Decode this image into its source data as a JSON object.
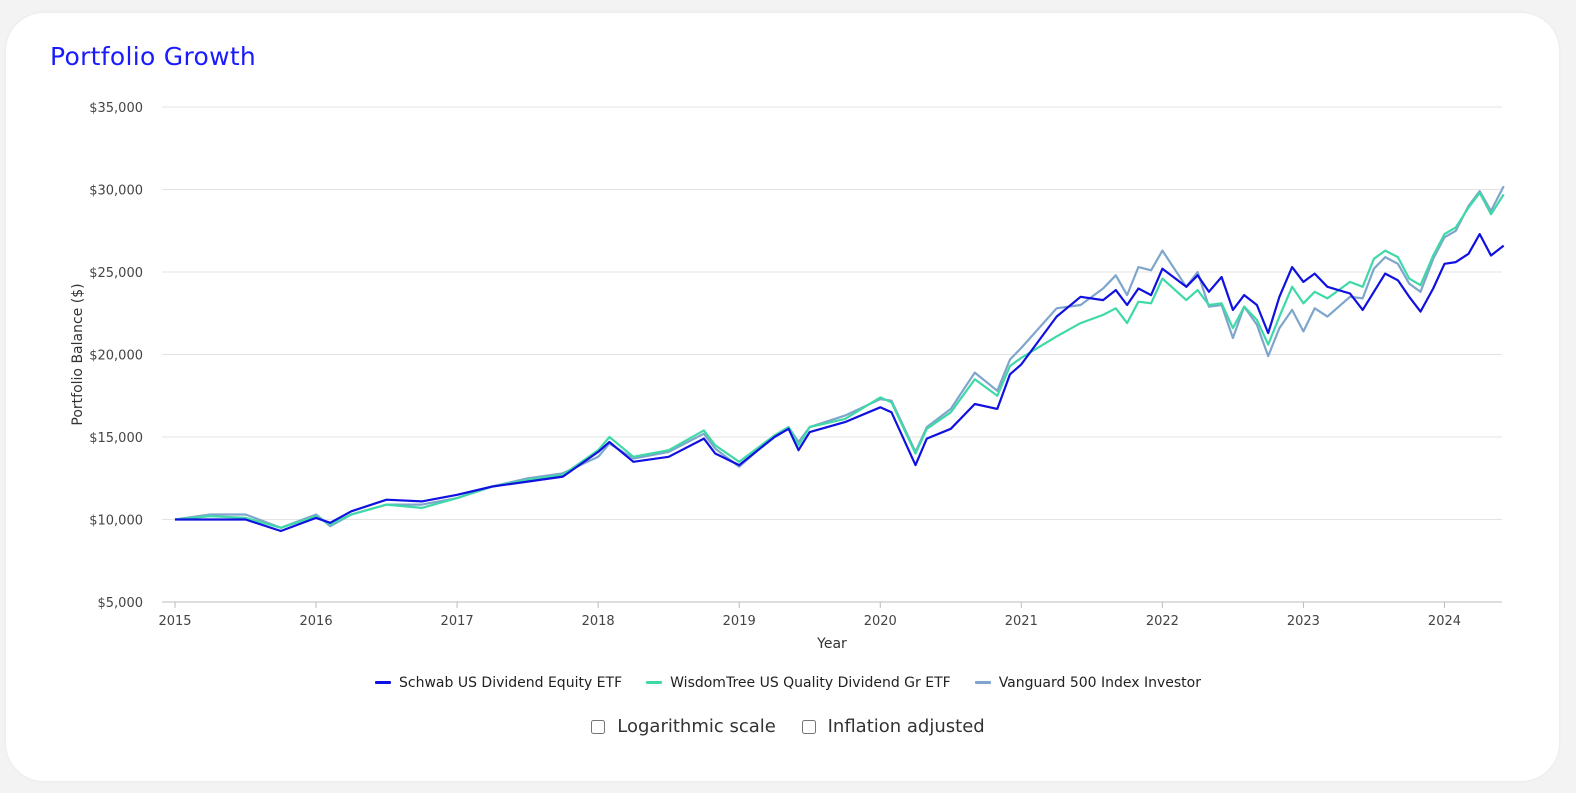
{
  "title": "Portfolio Growth",
  "colors": {
    "background": "#ffffff",
    "title": "#1a1aff",
    "grid": "#e3e3e3"
  },
  "options": {
    "log_label": "Logarithmic scale",
    "inflation_label": "Inflation adjusted",
    "log_checked": false,
    "inflation_checked": false
  },
  "chart_data": {
    "type": "line",
    "title": "",
    "xlabel": "Year",
    "ylabel": "Portfolio Balance ($)",
    "xlim": [
      2015.0,
      2024.5
    ],
    "ylim": [
      5000,
      35000
    ],
    "y_ticks": [
      5000,
      10000,
      15000,
      20000,
      25000,
      30000,
      35000
    ],
    "y_tick_labels": [
      "$5,000",
      "$10,000",
      "$15,000",
      "$20,000",
      "$25,000",
      "$30,000",
      "$35,000"
    ],
    "x_ticks": [
      2015,
      2016,
      2017,
      2018,
      2019,
      2020,
      2021,
      2022,
      2023,
      2024
    ],
    "x_tick_labels": [
      "2015",
      "2016",
      "2017",
      "2018",
      "2019",
      "2020",
      "2021",
      "2022",
      "2023",
      "2024"
    ],
    "grid": true,
    "legend_position": "bottom",
    "series": [
      {
        "name": "Schwab US Dividend Equity ETF",
        "color": "#1010e0",
        "points": [
          [
            2015.0,
            10000
          ],
          [
            2015.25,
            10000
          ],
          [
            2015.5,
            10000
          ],
          [
            2015.75,
            9300
          ],
          [
            2016.0,
            10100
          ],
          [
            2016.1,
            9800
          ],
          [
            2016.25,
            10500
          ],
          [
            2016.5,
            11200
          ],
          [
            2016.75,
            11100
          ],
          [
            2017.0,
            11500
          ],
          [
            2017.25,
            12000
          ],
          [
            2017.5,
            12300
          ],
          [
            2017.75,
            12600
          ],
          [
            2018.0,
            14100
          ],
          [
            2018.08,
            14700
          ],
          [
            2018.25,
            13500
          ],
          [
            2018.5,
            13800
          ],
          [
            2018.75,
            14900
          ],
          [
            2018.83,
            14000
          ],
          [
            2019.0,
            13300
          ],
          [
            2019.25,
            15000
          ],
          [
            2019.35,
            15500
          ],
          [
            2019.42,
            14200
          ],
          [
            2019.5,
            15300
          ],
          [
            2019.75,
            15900
          ],
          [
            2020.0,
            16800
          ],
          [
            2020.08,
            16500
          ],
          [
            2020.25,
            13300
          ],
          [
            2020.33,
            14900
          ],
          [
            2020.5,
            15500
          ],
          [
            2020.67,
            17000
          ],
          [
            2020.83,
            16700
          ],
          [
            2020.92,
            18800
          ],
          [
            2021.0,
            19400
          ],
          [
            2021.25,
            22300
          ],
          [
            2021.42,
            23500
          ],
          [
            2021.58,
            23300
          ],
          [
            2021.67,
            23900
          ],
          [
            2021.75,
            23000
          ],
          [
            2021.83,
            24000
          ],
          [
            2021.92,
            23600
          ],
          [
            2022.0,
            25200
          ],
          [
            2022.17,
            24100
          ],
          [
            2022.25,
            24800
          ],
          [
            2022.33,
            23800
          ],
          [
            2022.42,
            24700
          ],
          [
            2022.5,
            22700
          ],
          [
            2022.58,
            23600
          ],
          [
            2022.67,
            23000
          ],
          [
            2022.75,
            21300
          ],
          [
            2022.83,
            23500
          ],
          [
            2022.92,
            25300
          ],
          [
            2023.0,
            24400
          ],
          [
            2023.08,
            24900
          ],
          [
            2023.17,
            24100
          ],
          [
            2023.33,
            23700
          ],
          [
            2023.42,
            22700
          ],
          [
            2023.5,
            23800
          ],
          [
            2023.58,
            24900
          ],
          [
            2023.67,
            24500
          ],
          [
            2023.75,
            23500
          ],
          [
            2023.83,
            22600
          ],
          [
            2023.92,
            24000
          ],
          [
            2024.0,
            25500
          ],
          [
            2024.08,
            25600
          ],
          [
            2024.17,
            26100
          ],
          [
            2024.25,
            27300
          ],
          [
            2024.33,
            26000
          ],
          [
            2024.42,
            26600
          ]
        ]
      },
      {
        "name": "WisdomTree US Quality Dividend Gr ETF",
        "color": "#3fd9a8",
        "points": [
          [
            2015.0,
            10000
          ],
          [
            2015.25,
            10200
          ],
          [
            2015.5,
            10100
          ],
          [
            2015.75,
            9500
          ],
          [
            2016.0,
            10200
          ],
          [
            2016.1,
            9700
          ],
          [
            2016.25,
            10300
          ],
          [
            2016.5,
            10900
          ],
          [
            2016.75,
            10700
          ],
          [
            2017.0,
            11300
          ],
          [
            2017.25,
            12000
          ],
          [
            2017.5,
            12400
          ],
          [
            2017.75,
            12700
          ],
          [
            2018.0,
            14200
          ],
          [
            2018.08,
            15000
          ],
          [
            2018.25,
            13800
          ],
          [
            2018.5,
            14200
          ],
          [
            2018.75,
            15400
          ],
          [
            2018.83,
            14500
          ],
          [
            2019.0,
            13500
          ],
          [
            2019.25,
            15100
          ],
          [
            2019.35,
            15600
          ],
          [
            2019.42,
            14500
          ],
          [
            2019.5,
            15600
          ],
          [
            2019.75,
            16100
          ],
          [
            2020.0,
            17400
          ],
          [
            2020.08,
            17100
          ],
          [
            2020.25,
            14000
          ],
          [
            2020.33,
            15500
          ],
          [
            2020.5,
            16500
          ],
          [
            2020.67,
            18500
          ],
          [
            2020.83,
            17500
          ],
          [
            2020.92,
            19300
          ],
          [
            2021.0,
            19800
          ],
          [
            2021.25,
            21100
          ],
          [
            2021.42,
            21900
          ],
          [
            2021.58,
            22400
          ],
          [
            2021.67,
            22800
          ],
          [
            2021.75,
            21900
          ],
          [
            2021.83,
            23200
          ],
          [
            2021.92,
            23100
          ],
          [
            2022.0,
            24600
          ],
          [
            2022.17,
            23300
          ],
          [
            2022.25,
            23900
          ],
          [
            2022.33,
            23000
          ],
          [
            2022.42,
            23100
          ],
          [
            2022.5,
            21600
          ],
          [
            2022.58,
            22900
          ],
          [
            2022.67,
            22100
          ],
          [
            2022.75,
            20600
          ],
          [
            2022.83,
            22300
          ],
          [
            2022.92,
            24100
          ],
          [
            2023.0,
            23100
          ],
          [
            2023.08,
            23800
          ],
          [
            2023.17,
            23400
          ],
          [
            2023.33,
            24400
          ],
          [
            2023.42,
            24100
          ],
          [
            2023.5,
            25800
          ],
          [
            2023.58,
            26300
          ],
          [
            2023.67,
            25900
          ],
          [
            2023.75,
            24600
          ],
          [
            2023.83,
            24200
          ],
          [
            2023.92,
            26000
          ],
          [
            2024.0,
            27300
          ],
          [
            2024.08,
            27700
          ],
          [
            2024.17,
            28900
          ],
          [
            2024.25,
            29800
          ],
          [
            2024.33,
            28500
          ],
          [
            2024.42,
            29700
          ]
        ]
      },
      {
        "name": "Vanguard 500 Index Investor",
        "color": "#7ea6cc",
        "points": [
          [
            2015.0,
            10000
          ],
          [
            2015.25,
            10300
          ],
          [
            2015.5,
            10300
          ],
          [
            2015.75,
            9500
          ],
          [
            2016.0,
            10300
          ],
          [
            2016.1,
            9600
          ],
          [
            2016.25,
            10300
          ],
          [
            2016.5,
            10900
          ],
          [
            2016.75,
            10900
          ],
          [
            2017.0,
            11300
          ],
          [
            2017.25,
            12000
          ],
          [
            2017.5,
            12500
          ],
          [
            2017.75,
            12800
          ],
          [
            2018.0,
            13800
          ],
          [
            2018.08,
            14600
          ],
          [
            2018.25,
            13700
          ],
          [
            2018.5,
            14100
          ],
          [
            2018.75,
            15200
          ],
          [
            2018.83,
            14300
          ],
          [
            2019.0,
            13200
          ],
          [
            2019.25,
            15100
          ],
          [
            2019.35,
            15600
          ],
          [
            2019.42,
            14700
          ],
          [
            2019.5,
            15600
          ],
          [
            2019.75,
            16300
          ],
          [
            2020.0,
            17300
          ],
          [
            2020.08,
            17200
          ],
          [
            2020.25,
            14100
          ],
          [
            2020.33,
            15600
          ],
          [
            2020.5,
            16700
          ],
          [
            2020.67,
            18900
          ],
          [
            2020.83,
            17800
          ],
          [
            2020.92,
            19700
          ],
          [
            2021.0,
            20400
          ],
          [
            2021.25,
            22800
          ],
          [
            2021.42,
            23000
          ],
          [
            2021.58,
            24000
          ],
          [
            2021.67,
            24800
          ],
          [
            2021.75,
            23600
          ],
          [
            2021.83,
            25300
          ],
          [
            2021.92,
            25100
          ],
          [
            2022.0,
            26300
          ],
          [
            2022.17,
            24100
          ],
          [
            2022.25,
            25000
          ],
          [
            2022.33,
            22900
          ],
          [
            2022.42,
            23000
          ],
          [
            2022.5,
            21000
          ],
          [
            2022.58,
            22900
          ],
          [
            2022.67,
            21800
          ],
          [
            2022.75,
            19900
          ],
          [
            2022.83,
            21600
          ],
          [
            2022.92,
            22700
          ],
          [
            2023.0,
            21400
          ],
          [
            2023.08,
            22800
          ],
          [
            2023.17,
            22300
          ],
          [
            2023.33,
            23500
          ],
          [
            2023.42,
            23400
          ],
          [
            2023.5,
            25200
          ],
          [
            2023.58,
            25900
          ],
          [
            2023.67,
            25500
          ],
          [
            2023.75,
            24300
          ],
          [
            2023.83,
            23800
          ],
          [
            2023.92,
            25800
          ],
          [
            2024.0,
            27100
          ],
          [
            2024.08,
            27500
          ],
          [
            2024.17,
            29000
          ],
          [
            2024.25,
            29900
          ],
          [
            2024.33,
            28700
          ],
          [
            2024.42,
            30200
          ]
        ]
      }
    ]
  }
}
